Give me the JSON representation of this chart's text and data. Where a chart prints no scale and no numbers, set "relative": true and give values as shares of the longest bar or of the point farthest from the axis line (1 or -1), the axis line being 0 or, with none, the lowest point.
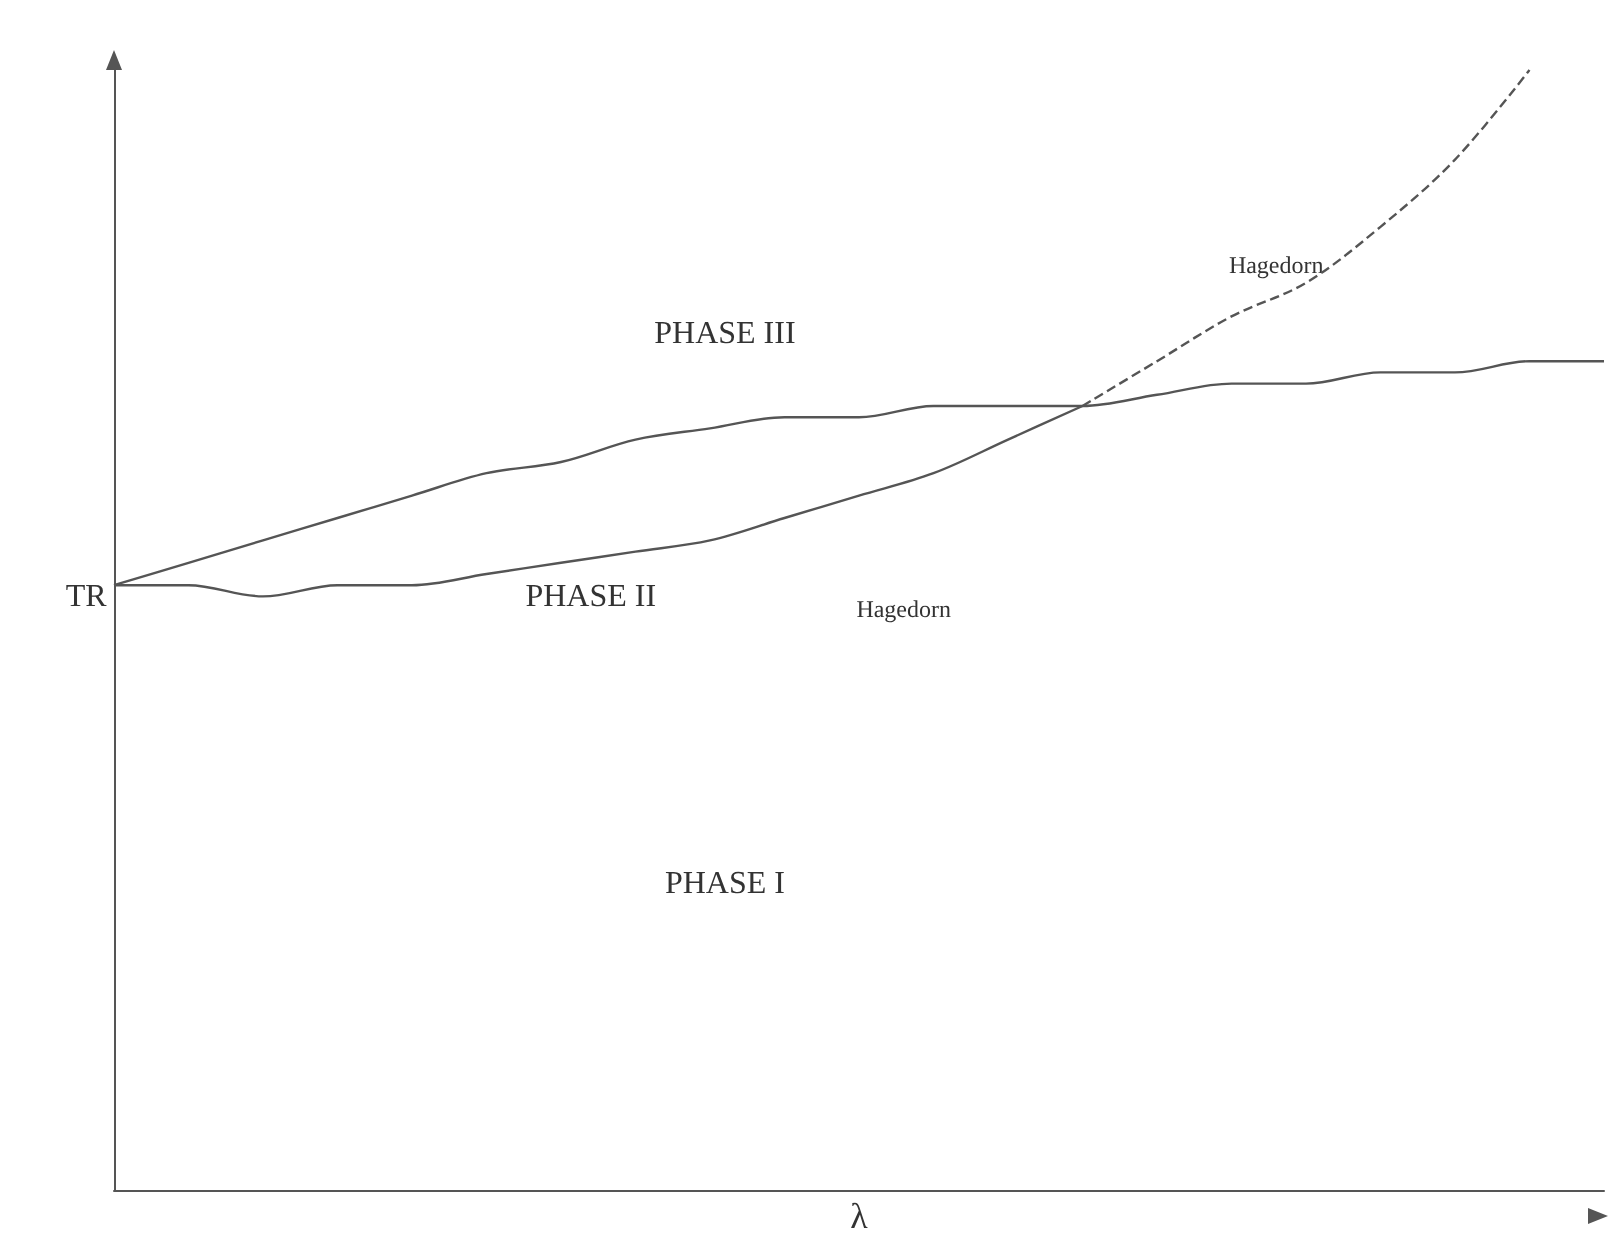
{
  "chart_data": {
    "type": "line",
    "relative": true,
    "xlabel": "λ",
    "tick_labels": false,
    "marker": "none",
    "grid": false,
    "categories": [
      null,
      null,
      null,
      null,
      null,
      null,
      null,
      null,
      null,
      null,
      null,
      null,
      null,
      null,
      null,
      null,
      null,
      null,
      null,
      null,
      null
    ],
    "series": [
      {
        "color": "#555555",
        "line_style": "solid",
        "values": [
          0.54,
          0.56,
          0.58,
          0.6,
          0.62,
          0.64,
          0.65,
          0.67,
          0.68,
          0.69,
          0.69,
          0.7,
          0.7,
          0.7,
          0.71,
          0.72,
          0.72,
          0.73,
          0.73,
          0.74,
          0.74
        ]
      },
      {
        "color": "#555555",
        "line_style": "solid",
        "values": [
          0.54,
          0.54,
          0.53,
          0.54,
          0.54,
          0.55,
          0.56,
          0.57,
          0.58,
          0.6,
          0.62,
          0.64,
          0.67,
          0.7,
          null,
          null,
          null,
          null,
          null,
          null,
          null
        ]
      },
      {
        "color": "#555555",
        "line_style": "dashed",
        "values": [
          null,
          null,
          null,
          null,
          null,
          null,
          null,
          null,
          null,
          null,
          null,
          null,
          null,
          0.7,
          0.74,
          0.78,
          0.81,
          0.86,
          0.92,
          1,
          null
        ]
      }
    ],
    "annotations": [
      "TR",
      "PHASE III",
      "PHASE II",
      "PHASE I",
      "Hagedorn",
      "Hagedorn"
    ]
  }
}
